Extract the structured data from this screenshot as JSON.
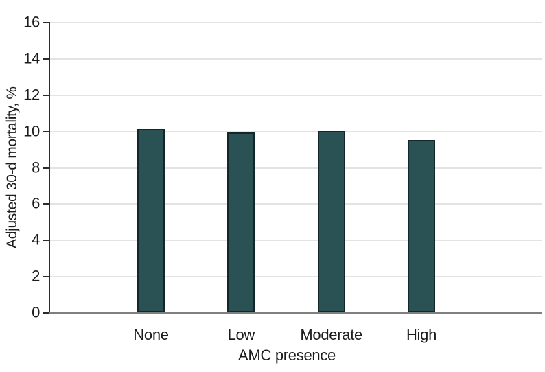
{
  "chart_data": {
    "type": "bar",
    "title": "",
    "categories": [
      "None",
      "Low",
      "Moderate",
      "High"
    ],
    "values": [
      10.1,
      9.9,
      10.0,
      9.5
    ],
    "xlabel": "AMC presence",
    "ylabel": "Adjusted 30-d mortality, %",
    "ylim": [
      0,
      16
    ],
    "y_ticks": [
      0,
      2,
      4,
      6,
      8,
      10,
      12,
      14,
      16
    ],
    "grid": "horizontal",
    "legend": "none",
    "bar_color": "#2a5254",
    "bar_border_color": "#13262a",
    "gridline_color": "#e3e3e3",
    "axis_line_color": "#2b2b2b",
    "baseline_color": "#7f7f7f"
  }
}
